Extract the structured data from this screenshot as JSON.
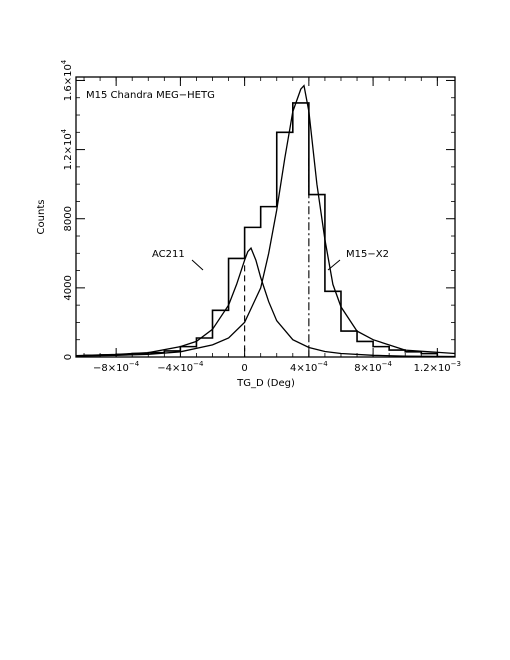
{
  "chart_data": {
    "type": "histogram",
    "title": "M15 Chandra MEG−HETG",
    "xlabel": "TG_D (Deg)",
    "ylabel": "Counts",
    "xlim": [
      -0.00105,
      0.00131
    ],
    "ylim": [
      0,
      16200
    ],
    "x_ticks": [
      {
        "value": -0.0008,
        "mant": "−8×10",
        "exp": "−4"
      },
      {
        "value": -0.0004,
        "mant": "−4×10",
        "exp": "−4"
      },
      {
        "value": 0,
        "mant": "0",
        "exp": ""
      },
      {
        "value": 0.0004,
        "mant": "4×10",
        "exp": "−4"
      },
      {
        "value": 0.0008,
        "mant": "8×10",
        "exp": "−4"
      },
      {
        "value": 0.0012,
        "mant": "1.2×10",
        "exp": "−3"
      }
    ],
    "y_ticks": [
      {
        "value": 0,
        "mant": "0",
        "exp": ""
      },
      {
        "value": 4000,
        "mant": "4000",
        "exp": ""
      },
      {
        "value": 8000,
        "mant": "8000",
        "exp": ""
      },
      {
        "value": 12000,
        "mant": "1.2×10",
        "exp": "4"
      },
      {
        "value": 16000,
        "mant": "1.6×10",
        "exp": "4"
      }
    ],
    "histogram": {
      "bin_edges": [
        -0.001,
        -0.0009,
        -0.0008,
        -0.0007,
        -0.0006,
        -0.0005,
        -0.0004,
        -0.0003,
        -0.0002,
        -0.0001,
        0,
        0.0001,
        0.0002,
        0.0003,
        0.0004,
        0.0005,
        0.0006,
        0.0007,
        0.0008,
        0.0009,
        0.001,
        0.0011,
        0.0012
      ],
      "counts": [
        100,
        120,
        150,
        200,
        250,
        350,
        600,
        1100,
        2700,
        5700,
        7500,
        8700,
        13000,
        14700,
        9400,
        3800,
        1500,
        900,
        600,
        400,
        300,
        200
      ]
    },
    "models": [
      {
        "name": "AC211",
        "x": [
          -0.00105,
          -0.0008,
          -0.0006,
          -0.0004,
          -0.0003,
          -0.0002,
          -0.0001,
          -5e-05,
          0,
          2e-05,
          4e-05,
          7e-05,
          0.0001,
          0.00015,
          0.0002,
          0.0003,
          0.0004,
          0.0005,
          0.0006,
          0.0008,
          0.001,
          0.00131
        ],
        "y": [
          80,
          150,
          250,
          600,
          900,
          1600,
          3000,
          4200,
          5600,
          6100,
          6300,
          5600,
          4600,
          3200,
          2100,
          1000,
          550,
          320,
          200,
          100,
          50,
          30
        ]
      },
      {
        "name": "M15-X2",
        "x": [
          -0.00105,
          -0.0008,
          -0.0006,
          -0.0004,
          -0.0002,
          -0.0001,
          0,
          0.0001,
          0.00015,
          0.0002,
          0.00025,
          0.0003,
          0.00035,
          0.00037,
          0.0004,
          0.00045,
          0.0005,
          0.00055,
          0.0006,
          0.0007,
          0.0008,
          0.001,
          0.00131
        ],
        "y": [
          60,
          100,
          150,
          300,
          700,
          1100,
          2000,
          4000,
          6000,
          8500,
          11500,
          14200,
          15500,
          15700,
          14200,
          10000,
          6800,
          4200,
          2900,
          1500,
          1000,
          400,
          200
        ]
      }
    ],
    "markers": [
      {
        "x": 0,
        "style": "dashed",
        "y_top": 5300
      },
      {
        "x": 0.0004,
        "style": "dash-dot",
        "y_top": 11500
      }
    ],
    "annotations": [
      {
        "text": "AC211",
        "x": -0.00046,
        "y": 5700
      },
      {
        "text": "M15−X2",
        "x": 0.00074,
        "y": 5700
      }
    ]
  }
}
